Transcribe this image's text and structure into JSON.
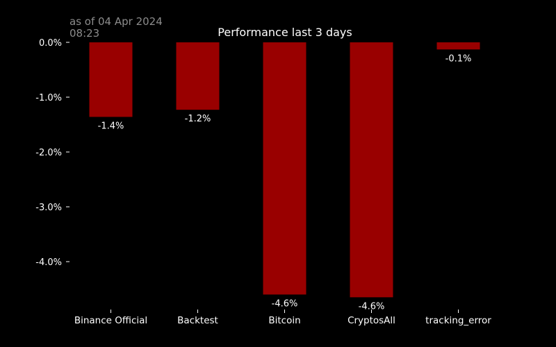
{
  "timestamp": {
    "line1": "as of 04 Apr 2024",
    "line2": "08:23"
  },
  "colors": {
    "background": "#000000",
    "bar": "#990000",
    "text": "#ffffff",
    "timestamp": "#8c8c8c"
  },
  "chart_data": {
    "type": "bar",
    "title": "Performance last 3 days",
    "xlabel": "",
    "ylabel": "",
    "categories": [
      "Binance Official",
      "Backtest",
      "Bitcoin",
      "CryptosAll",
      "tracking_error"
    ],
    "values": [
      -1.36,
      -1.23,
      -4.6,
      -4.65,
      -0.13
    ],
    "data_labels": [
      "-1.4%",
      "-1.2%",
      "-4.6%",
      "-4.6%",
      "-0.1%"
    ],
    "yticks": [
      0,
      -1,
      -2,
      -3,
      -4
    ],
    "ytick_labels": [
      "0.0%",
      "-1.0%",
      "-2.0%",
      "-3.0%",
      "-4.0%"
    ],
    "ylim": [
      -4.8,
      0
    ],
    "grid": false,
    "legend": "none"
  }
}
